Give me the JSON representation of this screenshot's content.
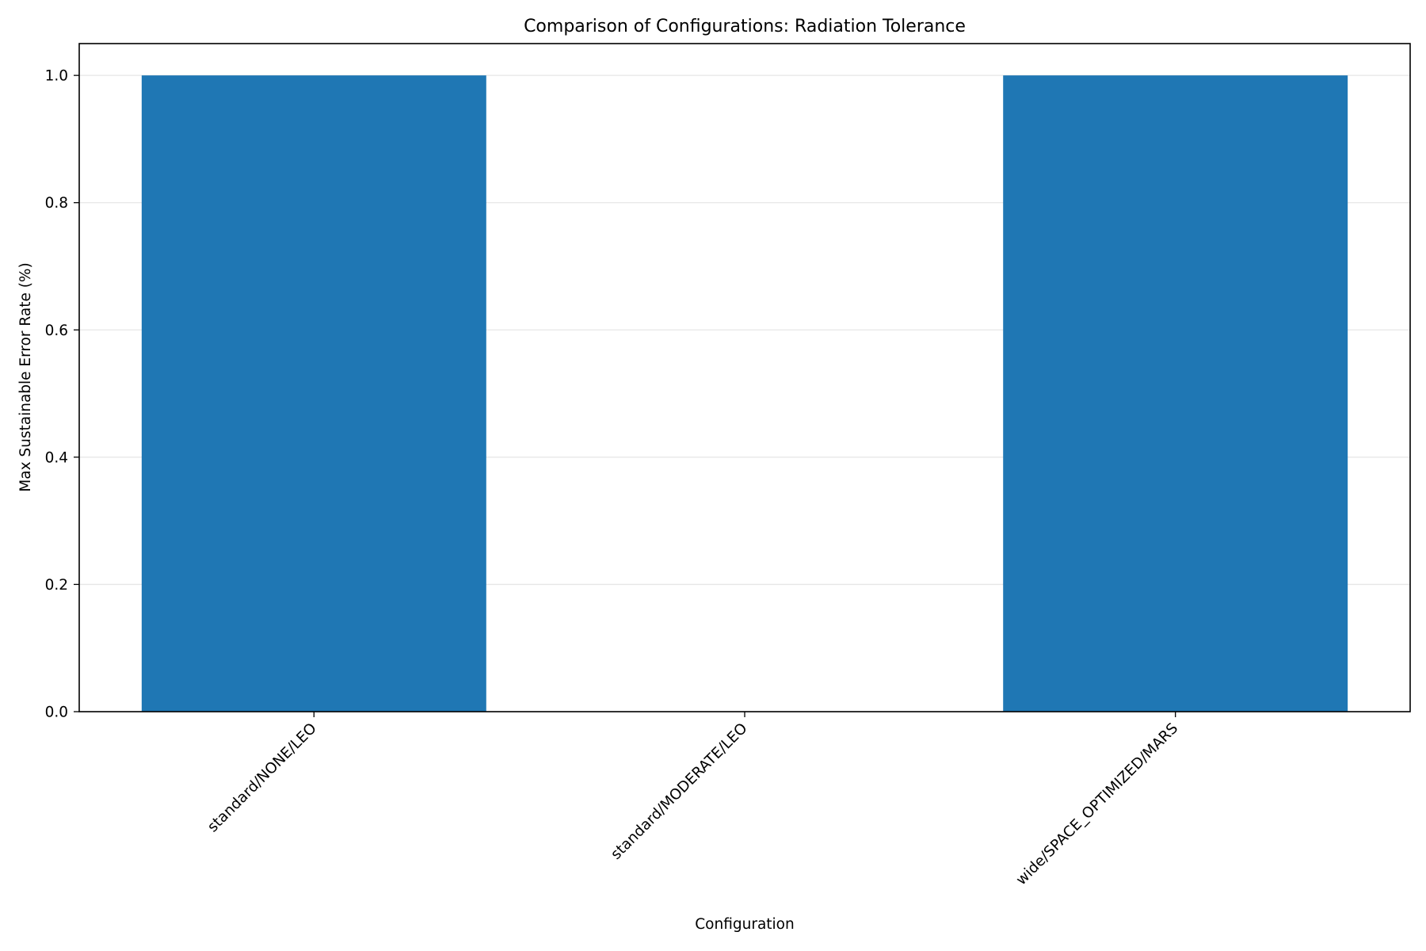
{
  "chart_data": {
    "type": "bar",
    "title": "Comparison of Configurations: Radiation Tolerance",
    "xlabel": "Configuration",
    "ylabel": "Max Sustainable Error Rate (%)",
    "categories": [
      "standard/NONE/LEO",
      "standard/MODERATE/LEO",
      "wide/SPACE_OPTIMIZED/MARS"
    ],
    "values": [
      1.0,
      0.0,
      1.0
    ],
    "ylim": [
      0,
      1.05
    ],
    "yticks": [
      0.0,
      0.2,
      0.4,
      0.6,
      0.8,
      1.0
    ],
    "ytick_labels": [
      "0.0",
      "0.2",
      "0.4",
      "0.6",
      "0.8",
      "1.0"
    ],
    "grid": "y-axis only",
    "legend": "none",
    "bar_color": "#1f77b4",
    "grid_color": "#e6e6e6"
  }
}
